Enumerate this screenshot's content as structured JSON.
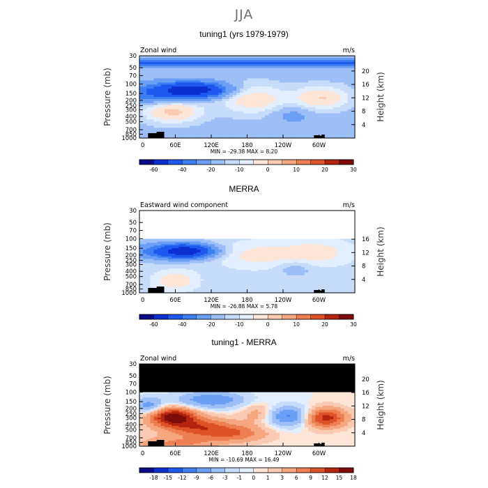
{
  "page": {
    "title": "JJA"
  },
  "colors": {
    "frame": "#000000",
    "topo": "#000000",
    "scale": [
      "#0b0b88",
      "#0b2fd0",
      "#1e58ee",
      "#3d7ff2",
      "#6b9ff5",
      "#9dbff7",
      "#c6dcfa",
      "#e3efff",
      "#fde5d8",
      "#fbcab2",
      "#f5a780",
      "#ee7f52",
      "#de5229",
      "#b4240f",
      "#7d0c0a"
    ]
  },
  "chart_data": [
    {
      "type": "contour",
      "title": "tuning1 (yrs 1979-1979)",
      "left_label": "Zonal wind",
      "units_label": "m/s",
      "ylabel": "Pressure (mb)",
      "ylabel_right": "Height (km)",
      "x_ticks": [
        "0",
        "60E",
        "120E",
        "180",
        "120W",
        "60W"
      ],
      "y_ticks": [
        "30",
        "50",
        "70",
        "100",
        "150",
        "200",
        "250",
        "300",
        "400",
        "500",
        "700",
        "850",
        "1000"
      ],
      "height_ticks": [
        "20",
        "16",
        "12",
        "8",
        "4"
      ],
      "stats": {
        "min": "-29.38",
        "max": "8.20"
      },
      "stats_line": "MIN = -29.38   MAX =   8.20",
      "colorbar_labels": [
        "-60",
        "-40",
        "-20",
        "-10",
        "0",
        "10",
        "20",
        "30"
      ],
      "xlim_deg": [
        0,
        360
      ],
      "ylim_mb": [
        1000,
        30
      ],
      "data_top_mb": 30,
      "fields": [
        {
          "lon": 90,
          "p": 130,
          "amp": -29,
          "wlon": 38,
          "wlp": 0.22
        },
        {
          "lon": 25,
          "p": 150,
          "amp": -10,
          "wlon": 45,
          "wlp": 0.3
        },
        {
          "lon": 55,
          "p": 320,
          "amp": 9,
          "wlon": 34,
          "wlp": 0.35
        },
        {
          "lon": 190,
          "p": 190,
          "amp": 7,
          "wlon": 40,
          "wlp": 0.45
        },
        {
          "lon": 305,
          "p": 180,
          "amp": 8,
          "wlon": 32,
          "wlp": 0.35
        },
        {
          "lon": 255,
          "p": 380,
          "amp": -4,
          "wlon": 22,
          "wlp": 0.25
        },
        {
          "lon": 180,
          "p": 40,
          "amp": -14,
          "wlon": 900,
          "wlp": 0.12
        }
      ],
      "base": -3
    },
    {
      "type": "contour",
      "title": "MERRA",
      "left_label": "Eastward wind component",
      "units_label": "m/s",
      "ylabel": "Pressure (mb)",
      "ylabel_right": "Height (km)",
      "x_ticks": [
        "0",
        "60E",
        "120E",
        "180",
        "120W",
        "60W"
      ],
      "y_ticks": [
        "30",
        "50",
        "70",
        "100",
        "150",
        "200",
        "250",
        "300",
        "400",
        "500",
        "700",
        "850",
        "1000"
      ],
      "height_ticks": [
        "16",
        "12",
        "8",
        "4"
      ],
      "stats": {
        "min": "-26.88",
        "max": "5.78"
      },
      "stats_line": "MIN = -26.88   MAX =   5.78",
      "colorbar_labels": [
        "-60",
        "-40",
        "-20",
        "-10",
        "0",
        "10",
        "20",
        "30"
      ],
      "xlim_deg": [
        0,
        360
      ],
      "ylim_mb": [
        1000,
        30
      ],
      "data_top_mb": 100,
      "fields": [
        {
          "lon": 80,
          "p": 170,
          "amp": -26,
          "wlon": 30,
          "wlp": 0.2
        },
        {
          "lon": 40,
          "p": 170,
          "amp": -10,
          "wlon": 45,
          "wlp": 0.25
        },
        {
          "lon": 60,
          "p": 600,
          "amp": 5,
          "wlon": 25,
          "wlp": 0.3
        },
        {
          "lon": 200,
          "p": 200,
          "amp": 4,
          "wlon": 50,
          "wlp": 0.4
        },
        {
          "lon": 300,
          "p": 180,
          "amp": 4,
          "wlon": 40,
          "wlp": 0.4
        },
        {
          "lon": 260,
          "p": 350,
          "amp": -3,
          "wlon": 22,
          "wlp": 0.25
        }
      ],
      "base": -1
    },
    {
      "type": "contour",
      "title": "tuning1 - MERRA",
      "left_label": "Zonal wind",
      "units_label": "m/s",
      "ylabel": "Pressure (mb)",
      "ylabel_right": "Height (km)",
      "x_ticks": [
        "0",
        "60E",
        "120E",
        "180",
        "120W",
        "60W"
      ],
      "y_ticks": [
        "30",
        "50",
        "70",
        "100",
        "150",
        "200",
        "250",
        "300",
        "400",
        "500",
        "700",
        "850",
        "1000"
      ],
      "height_ticks": [
        "20",
        "16",
        "12",
        "8",
        "4"
      ],
      "stats": {
        "min": "-10.69",
        "max": "16.49"
      },
      "stats_line": "MIN = -10.69   MAX =  16.49",
      "colorbar_labels": [
        "-18",
        "-15",
        "-12",
        "-9",
        "-6",
        "-3",
        "-1",
        "0",
        "1",
        "3",
        "6",
        "9",
        "12",
        "15",
        "18"
      ],
      "xlim_deg": [
        0,
        360
      ],
      "ylim_mb": [
        1000,
        30
      ],
      "data_top_mb": 100,
      "masked_above_mb": 100,
      "fields": [
        {
          "lon": 55,
          "p": 280,
          "amp": 16,
          "wlon": 28,
          "wlp": 0.28
        },
        {
          "lon": 100,
          "p": 450,
          "amp": 10,
          "wlon": 45,
          "wlp": 0.3
        },
        {
          "lon": 160,
          "p": 600,
          "amp": 7,
          "wlon": 40,
          "wlp": 0.25
        },
        {
          "lon": 120,
          "p": 140,
          "amp": -9,
          "wlon": 40,
          "wlp": 0.25
        },
        {
          "lon": 15,
          "p": 180,
          "amp": -8,
          "wlon": 18,
          "wlp": 0.25
        },
        {
          "lon": 250,
          "p": 280,
          "amp": -10,
          "wlon": 28,
          "wlp": 0.3
        },
        {
          "lon": 310,
          "p": 300,
          "amp": 14,
          "wlon": 25,
          "wlp": 0.3
        },
        {
          "lon": 200,
          "p": 250,
          "amp": 5,
          "wlon": 20,
          "wlp": 0.3
        },
        {
          "lon": 60,
          "p": 900,
          "amp": 6,
          "wlon": 50,
          "wlp": 0.2
        }
      ],
      "base": 0
    }
  ]
}
